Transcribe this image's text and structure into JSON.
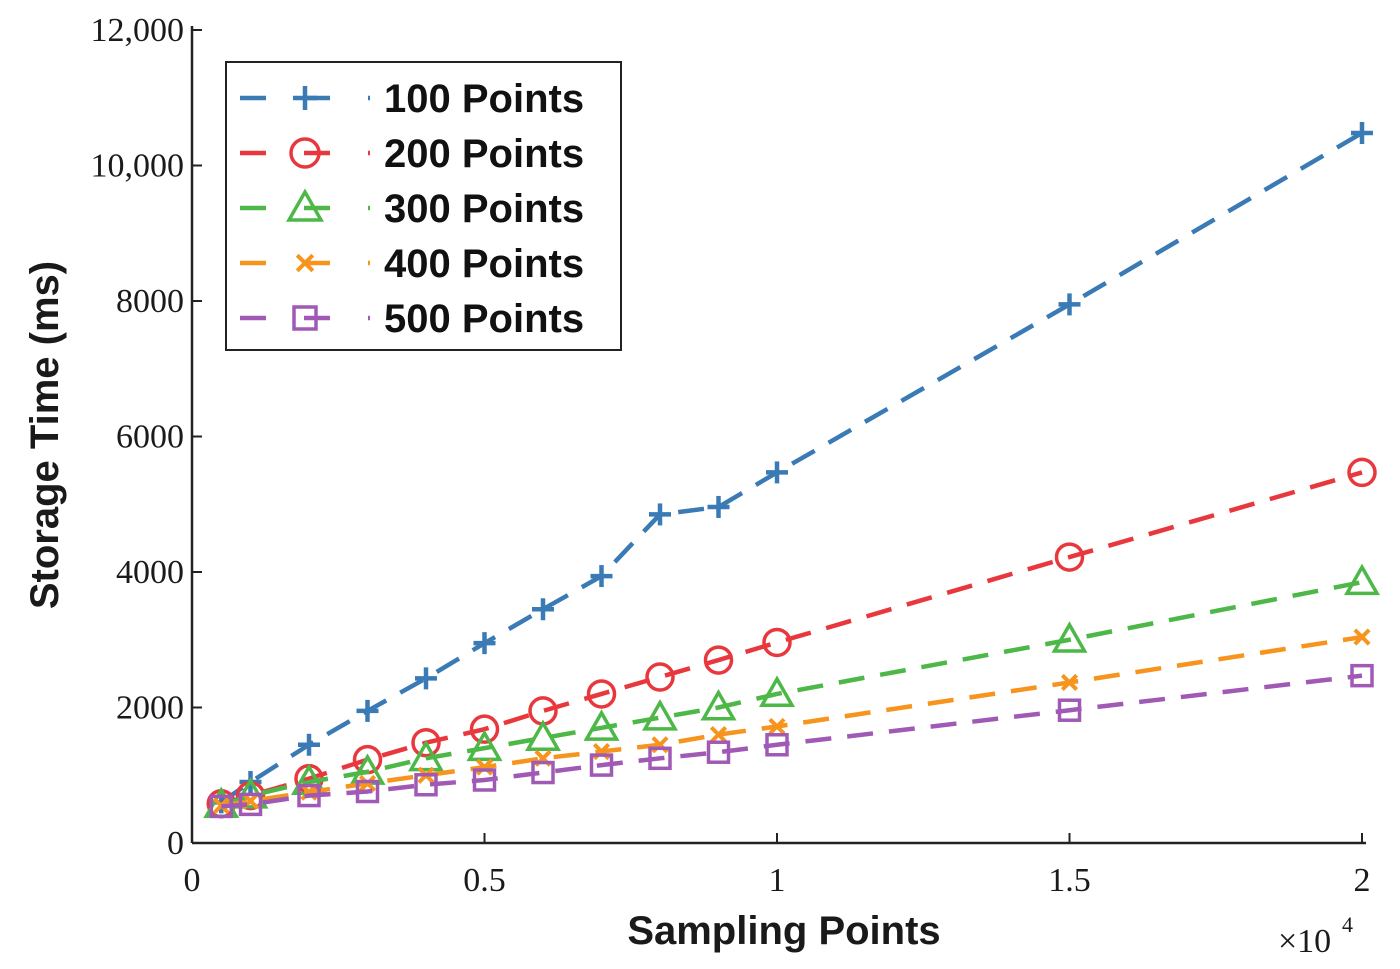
{
  "chart_data": {
    "type": "line",
    "title": "",
    "xlabel": "Sampling Points",
    "ylabel": "Storage Time (ms)",
    "x_multiplier": "×10",
    "x_multiplier_exponent": "4",
    "xlim": [
      0,
      2
    ],
    "ylim": [
      0,
      12000
    ],
    "x_ticks": [
      0,
      0.5,
      1,
      1.5,
      2
    ],
    "x_tick_labels": [
      "0",
      "0.5",
      "1",
      "1.5",
      "2"
    ],
    "y_ticks": [
      0,
      2000,
      4000,
      6000,
      8000,
      10000,
      12000
    ],
    "y_tick_labels": [
      "0",
      "2000",
      "4000",
      "6000",
      "8000",
      "10,000",
      "12,000"
    ],
    "grid": false,
    "legend_position": "top-left",
    "x": [
      0.05,
      0.1,
      0.2,
      0.3,
      0.4,
      0.5,
      0.6,
      0.7,
      0.8,
      0.9,
      1.0,
      1.5,
      2.0
    ],
    "series": [
      {
        "name": "100 Points",
        "color": "#3a7ab5",
        "marker": "plus",
        "values": [
          600,
          900,
          1450,
          1950,
          2430,
          2950,
          3450,
          3940,
          4850,
          4960,
          5470,
          7950,
          10480
        ]
      },
      {
        "name": "200 Points",
        "color": "#e8383d",
        "marker": "circle",
        "values": [
          580,
          700,
          950,
          1230,
          1480,
          1680,
          1950,
          2200,
          2450,
          2700,
          2960,
          4220,
          5470
        ]
      },
      {
        "name": "300 Points",
        "color": "#4db848",
        "marker": "triangle",
        "values": [
          560,
          700,
          900,
          1050,
          1250,
          1400,
          1550,
          1700,
          1850,
          2000,
          2200,
          3000,
          3850
        ]
      },
      {
        "name": "400 Points",
        "color": "#f7941d",
        "marker": "x",
        "values": [
          550,
          620,
          750,
          880,
          1000,
          1120,
          1250,
          1350,
          1450,
          1600,
          1720,
          2370,
          3040
        ]
      },
      {
        "name": "500 Points",
        "color": "#a05ab5",
        "marker": "square",
        "values": [
          540,
          570,
          700,
          760,
          860,
          930,
          1040,
          1150,
          1250,
          1340,
          1450,
          1960,
          2470
        ]
      }
    ]
  }
}
